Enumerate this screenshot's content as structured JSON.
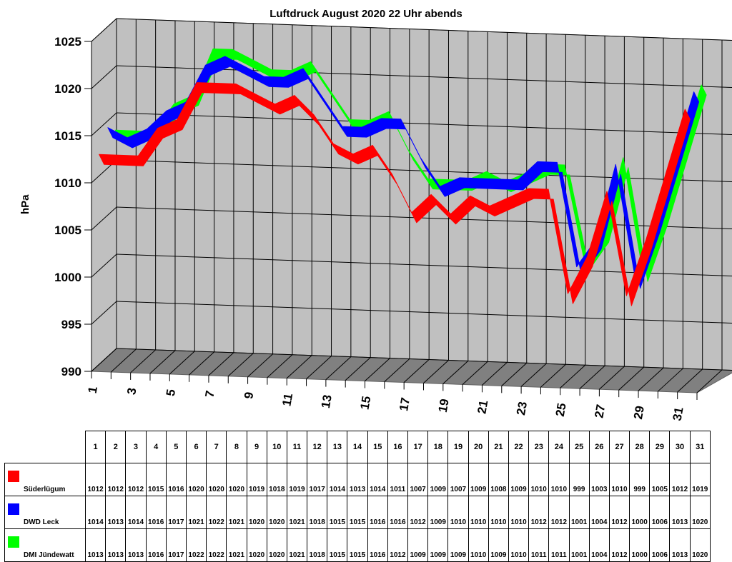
{
  "chart_data": {
    "type": "line",
    "title": "Luftdruck August 2020 22 Uhr abends",
    "xlabel": "",
    "ylabel": "hPa",
    "ylim": [
      990,
      1025
    ],
    "yticks": [
      990,
      995,
      1000,
      1005,
      1010,
      1015,
      1020,
      1025
    ],
    "x": [
      1,
      2,
      3,
      4,
      5,
      6,
      7,
      8,
      9,
      10,
      11,
      12,
      13,
      14,
      15,
      16,
      17,
      18,
      19,
      20,
      21,
      22,
      23,
      24,
      25,
      26,
      27,
      28,
      29,
      30,
      31
    ],
    "xtick_labels": [
      "1",
      "3",
      "5",
      "7",
      "9",
      "11",
      "13",
      "15",
      "17",
      "19",
      "21",
      "23",
      "25",
      "27",
      "29",
      "31"
    ],
    "style": "3d ribbon lines with gray walls and gridlines; data table below",
    "series": [
      {
        "name": "Süderlügum",
        "color": "#ff0000",
        "values": [
          1012,
          1012,
          1012,
          1015,
          1016,
          1020,
          1020,
          1020,
          1019,
          1018,
          1019,
          1017,
          1014,
          1013,
          1014,
          1011,
          1007,
          1009,
          1007,
          1009,
          1008,
          1009,
          1010,
          1010,
          999,
          1003,
          1010,
          999,
          1005,
          1012,
          1019
        ]
      },
      {
        "name": "DWD Leck",
        "color": "#0000ff",
        "values": [
          1014,
          1013,
          1014,
          1016,
          1017,
          1021,
          1022,
          1021,
          1020,
          1020,
          1021,
          1018,
          1015,
          1015,
          1016,
          1016,
          1012,
          1009,
          1010,
          1010,
          1010,
          1010,
          1012,
          1012,
          1001,
          1004,
          1012,
          1000,
          1006,
          1013,
          1020
        ]
      },
      {
        "name": "DMI Jündewatt",
        "color": "#00ff00",
        "values": [
          1013,
          1013,
          1013,
          1016,
          1017,
          1022,
          1022,
          1021,
          1020,
          1020,
          1021,
          1018,
          1015,
          1015,
          1016,
          1012,
          1009,
          1009,
          1009,
          1010,
          1009,
          1010,
          1011,
          1011,
          1001,
          1004,
          1012,
          1000,
          1006,
          1013,
          1020
        ]
      }
    ]
  },
  "table": {
    "days": [
      "1",
      "2",
      "3",
      "4",
      "5",
      "6",
      "7",
      "8",
      "9",
      "10",
      "11",
      "12",
      "13",
      "14",
      "15",
      "16",
      "17",
      "18",
      "19",
      "20",
      "21",
      "22",
      "23",
      "24",
      "25",
      "26",
      "27",
      "28",
      "29",
      "30",
      "31"
    ]
  }
}
